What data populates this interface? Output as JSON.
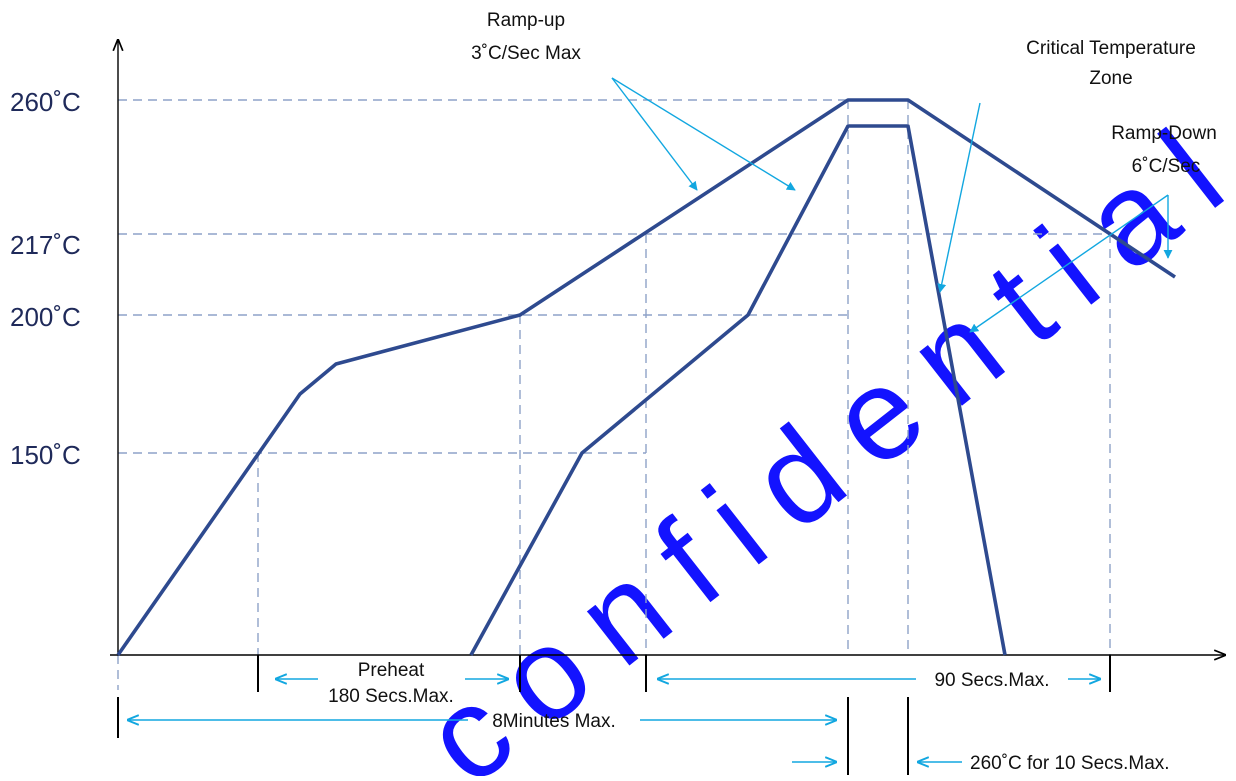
{
  "colors": {
    "profile_line": "#2e4a8f",
    "guide_line": "#8ea2c8",
    "annotation_arrow": "#12a7e0",
    "axis": "#000000",
    "watermark": "#0000ff"
  },
  "y_axis_labels": [
    "260˚C",
    "217˚C",
    "200˚C",
    "150˚C"
  ],
  "annotations": {
    "ramp_up_line1": "Ramp-up",
    "ramp_up_line2": "3˚C/Sec Max",
    "critical_zone_line1": "Critical Temperature",
    "critical_zone_line2": "Zone",
    "ramp_down_line1": "Ramp-Down",
    "ramp_down_line2": "6˚C/Sec",
    "preheat_line1": "Preheat",
    "preheat_line2": "180 Secs.Max.",
    "above_liquidus": "90 Secs.Max.",
    "total_time": "8Minutes Max.",
    "peak_time": "260˚C for 10 Secs.Max."
  },
  "watermark_text": "confidential"
}
